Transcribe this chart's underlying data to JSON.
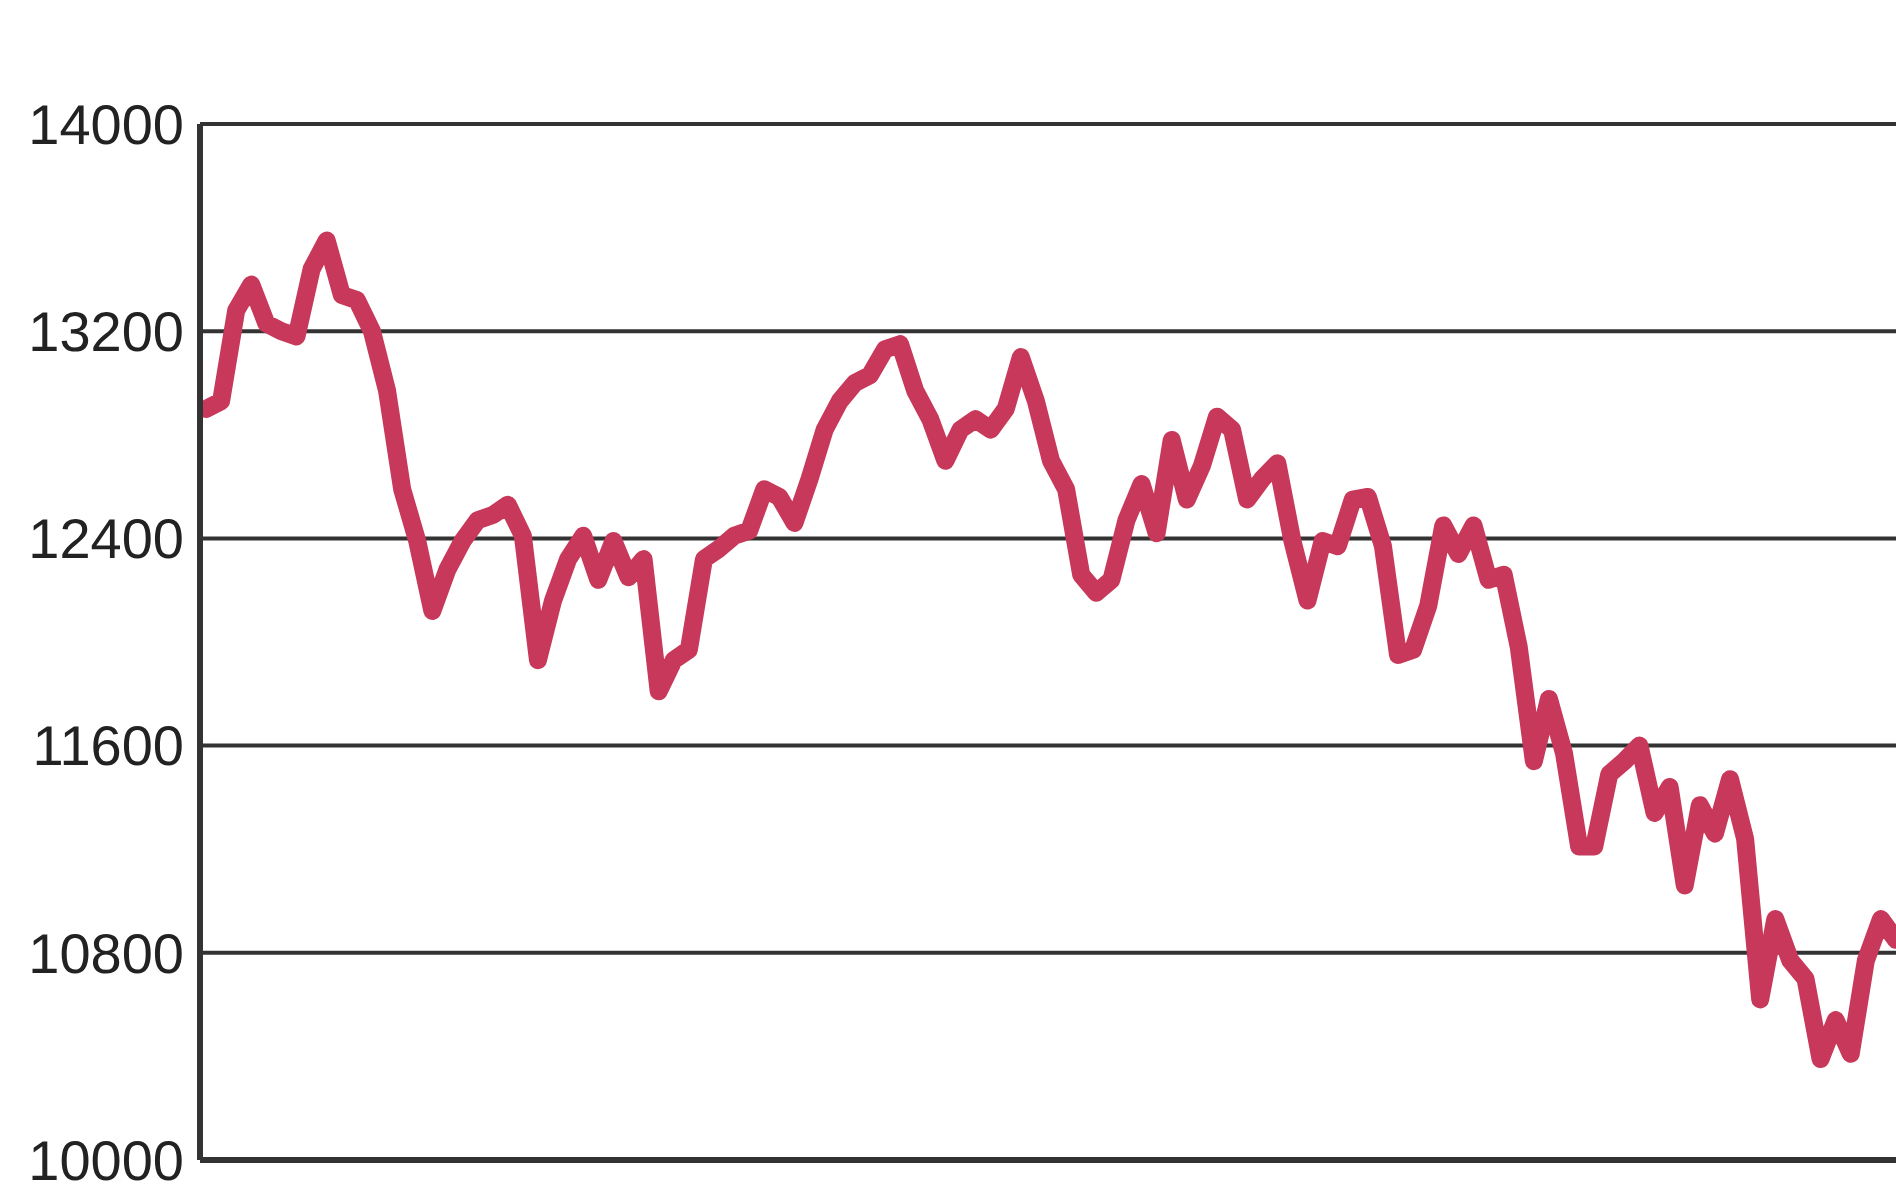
{
  "chart_data": {
    "type": "line",
    "color": "#c8385a",
    "line_style": "solid",
    "marker": "none",
    "grid": "y",
    "legend": false,
    "tick_labels": "y",
    "categories": [
      null,
      null,
      null,
      null,
      null,
      null,
      null,
      null,
      null,
      null,
      null,
      null,
      null,
      null,
      null,
      null,
      null,
      null,
      null,
      null,
      null,
      null,
      null,
      null,
      null,
      null,
      null,
      null,
      null,
      null,
      null,
      null,
      null,
      null,
      null,
      null,
      null,
      null,
      null,
      null,
      null,
      null,
      null,
      null,
      null,
      null,
      null,
      null,
      null,
      null,
      null,
      null,
      null,
      null,
      null,
      null,
      null,
      null,
      null,
      null,
      null,
      null,
      null,
      null,
      null,
      null,
      null,
      null,
      null,
      null,
      null,
      null,
      null,
      null,
      null,
      null,
      null,
      null,
      null,
      null,
      null,
      null,
      null,
      null,
      null,
      null,
      null,
      null,
      null,
      null,
      null,
      null,
      null,
      null,
      null,
      null,
      null,
      null,
      null,
      null,
      null,
      null,
      null,
      null,
      null,
      null,
      null,
      null,
      null,
      null,
      null,
      null,
      null
    ],
    "values": [
      12900,
      12930,
      13280,
      13380,
      13230,
      13200,
      13180,
      13440,
      13550,
      13340,
      13320,
      13200,
      12970,
      12590,
      12390,
      12120,
      12280,
      12390,
      12470,
      12490,
      12530,
      12410,
      11930,
      12160,
      12320,
      12410,
      12240,
      12390,
      12250,
      12320,
      11810,
      11930,
      11970,
      12320,
      12360,
      12410,
      12430,
      12590,
      12560,
      12460,
      12630,
      12820,
      12930,
      13000,
      13030,
      13130,
      13150,
      12970,
      12860,
      12700,
      12820,
      12860,
      12820,
      12900,
      13100,
      12930,
      12700,
      12590,
      12260,
      12190,
      12240,
      12470,
      12610,
      12420,
      12780,
      12550,
      12680,
      12870,
      12820,
      12550,
      12630,
      12690,
      12390,
      12160,
      12390,
      12370,
      12550,
      12560,
      12370,
      11950,
      11970,
      12140,
      12450,
      12340,
      12450,
      12240,
      12260,
      11980,
      11540,
      11780,
      11570,
      11210,
      11210,
      11490,
      11540,
      11600,
      11340,
      11440,
      11060,
      11370,
      11260,
      11470,
      11240,
      10620,
      10930,
      10770,
      10700,
      10390,
      10540,
      10410,
      10770,
      10930,
      10850
    ],
    "ylim": [
      10000,
      14000
    ],
    "yticks": [
      10000,
      10800,
      11600,
      12400,
      13200,
      14000
    ]
  }
}
